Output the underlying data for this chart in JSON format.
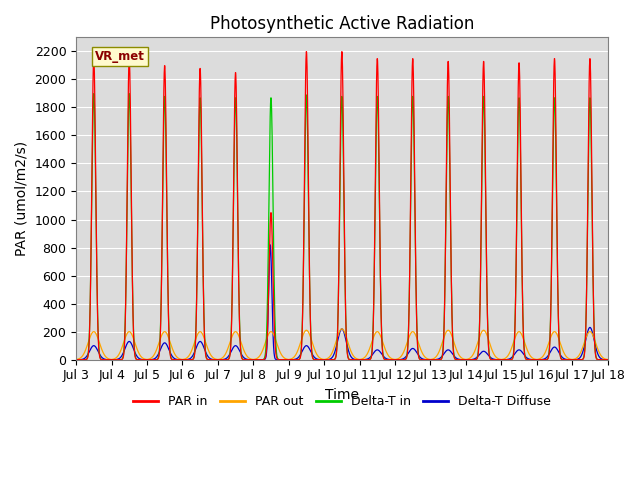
{
  "title": "Photosynthetic Active Radiation",
  "ylabel": "PAR (umol/m2/s)",
  "xlabel": "Time",
  "xlim": [
    0,
    15
  ],
  "ylim": [
    0,
    2300
  ],
  "yticks": [
    0,
    200,
    400,
    600,
    800,
    1000,
    1200,
    1400,
    1600,
    1800,
    2000,
    2200
  ],
  "xtick_labels": [
    "Jul 3",
    "Jul 4",
    "Jul 5",
    "Jul 6",
    "Jul 7",
    "Jul 8",
    "Jul 9",
    "Jul 10",
    "Jul 11",
    "Jul 12",
    "Jul 13",
    "Jul 14",
    "Jul 15",
    "Jul 16",
    "Jul 17",
    "Jul 18"
  ],
  "xtick_positions": [
    0,
    1,
    2,
    3,
    4,
    5,
    6,
    7,
    8,
    9,
    10,
    11,
    12,
    13,
    14,
    15
  ],
  "colors": {
    "par_in": "#FF0000",
    "par_out": "#FFA500",
    "delta_t_in": "#00CC00",
    "delta_t_diffuse": "#0000CC"
  },
  "background_color": "#DCDCDC",
  "legend_label": "VR_met",
  "legend_labels": [
    "PAR in",
    "PAR out",
    "Delta-T in",
    "Delta-T Diffuse"
  ],
  "title_fontsize": 12,
  "axis_fontsize": 10,
  "tick_fontsize": 9
}
